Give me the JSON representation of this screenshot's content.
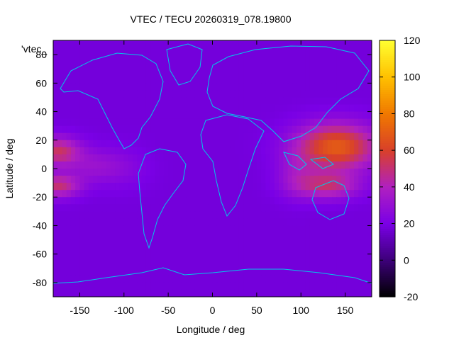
{
  "chart_data": {
    "type": "heatmap",
    "title": "VTEC / TECU 20260319_078.19800",
    "xlabel": "Longitude / deg",
    "ylabel": "Latitude / deg",
    "xlim": [
      -180,
      180
    ],
    "ylim": [
      -90,
      90
    ],
    "x_ticks": [
      -150,
      -100,
      -50,
      0,
      50,
      100,
      150
    ],
    "y_ticks": [
      -80,
      -60,
      -40,
      -20,
      0,
      20,
      40,
      60,
      80
    ],
    "colorbar": {
      "range": [
        -20,
        120
      ],
      "ticks": [
        -20,
        0,
        20,
        40,
        60,
        80,
        100,
        120
      ],
      "palette": [
        "#000000",
        "#3c0078",
        "#7a00e6",
        "#b020c0",
        "#d8402a",
        "#f07800",
        "#ffc000",
        "#ffff30"
      ]
    },
    "legend_key": "'vtec_",
    "coastline_color": "#00c8e8",
    "grid": false,
    "background_level": 18,
    "features": [
      {
        "lon": 140,
        "lat": 15,
        "sx": 45,
        "sy": 16,
        "value": 52
      },
      {
        "lon": 130,
        "lat": -12,
        "sx": 35,
        "sy": 9,
        "value": 30
      },
      {
        "lon": -175,
        "lat": 12,
        "sx": 25,
        "sy": 10,
        "value": 34
      },
      {
        "lon": -175,
        "lat": -12,
        "sx": 25,
        "sy": 8,
        "value": 32
      },
      {
        "lon": -135,
        "lat": 2,
        "sx": 30,
        "sy": 12,
        "value": 12
      },
      {
        "lon": -100,
        "lat": 0,
        "sx": 28,
        "sy": 14,
        "value": 6
      },
      {
        "lon": 95,
        "lat": -5,
        "sx": 22,
        "sy": 15,
        "value": 12
      }
    ]
  }
}
